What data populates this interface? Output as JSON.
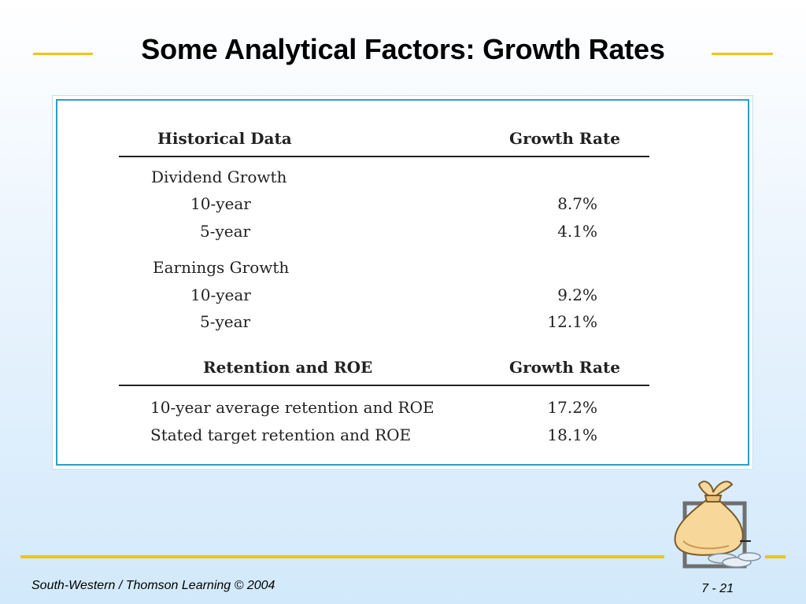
{
  "slide": {
    "title": "Some Analytical Factors: Growth Rates",
    "footer_left": "South-Western / Thomson Learning © 2004",
    "page_number": "7 - 21"
  },
  "table": {
    "section1": {
      "header_left": "Historical Data",
      "header_right": "Growth Rate",
      "group1_label": "Dividend Growth",
      "group1_rows": [
        {
          "label": "10-year",
          "value": "8.7%"
        },
        {
          "label": "5-year",
          "value": "4.1%"
        }
      ],
      "group2_label": "Earnings Growth",
      "group2_rows": [
        {
          "label": "10-year",
          "value": "9.2%"
        },
        {
          "label": "5-year",
          "value": "12.1%"
        }
      ]
    },
    "section2": {
      "header_left": "Retention and ROE",
      "header_right": "Growth Rate",
      "rows": [
        {
          "label": "10-year average retention and ROE",
          "value": "17.2%"
        },
        {
          "label": "Stated target retention and ROE",
          "value": "18.1%"
        }
      ]
    }
  },
  "colors": {
    "accent_line": "#f2c318",
    "frame_border": "#2aa0c8"
  },
  "icons": {
    "clipart": "money-bag-with-coins-icon"
  }
}
